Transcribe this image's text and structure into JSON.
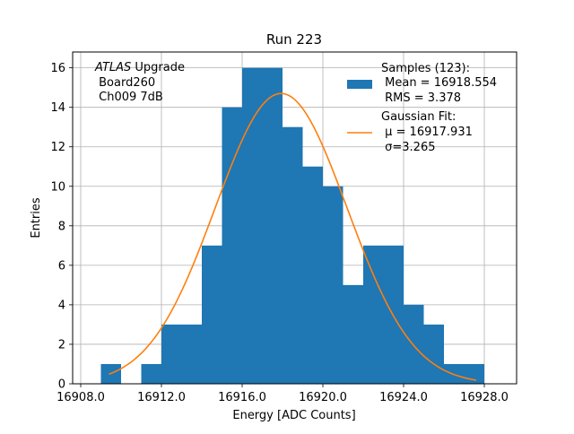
{
  "chart_data": {
    "type": "histogram",
    "title": "Run 223",
    "xlabel": "Energy [ADC Counts]",
    "ylabel": "Entries",
    "xlim": [
      16907.6,
      16929.6
    ],
    "ylim": [
      0,
      16.8
    ],
    "xticks": [
      16908,
      16912,
      16916,
      16920,
      16924,
      16928
    ],
    "xtick_labels": [
      "16908.0",
      "16912.0",
      "16916.0",
      "16920.0",
      "16924.0",
      "16928.0"
    ],
    "yticks": [
      0,
      2,
      4,
      6,
      8,
      10,
      12,
      14,
      16
    ],
    "ytick_labels": [
      "0",
      "2",
      "4",
      "6",
      "8",
      "10",
      "12",
      "14",
      "16"
    ],
    "grid": true,
    "bin_edges": [
      16908,
      16909,
      16910,
      16911,
      16912,
      16913,
      16914,
      16915,
      16916,
      16917,
      16918,
      16919,
      16920,
      16921,
      16922,
      16923,
      16924,
      16925,
      16926,
      16927,
      16928,
      16929
    ],
    "counts": [
      0,
      1,
      0,
      1,
      3,
      3,
      7,
      14,
      16,
      16,
      13,
      11,
      10,
      5,
      7,
      7,
      4,
      3,
      1,
      1,
      0
    ],
    "bar_color": "#1f77b4",
    "fit": {
      "type": "gaussian",
      "mu": 16917.931,
      "sigma": 3.265,
      "amplitude": 14.7,
      "x_range": [
        16909.4,
        16927.6
      ],
      "color": "#ff7f0e"
    },
    "annotation": {
      "lines": [
        "ATLAS Upgrade",
        " Board260",
        " Ch009 7dB"
      ],
      "italic_word": "ATLAS",
      "rest_first_line": " Upgrade"
    },
    "legend": {
      "position": "top-right",
      "entries": [
        {
          "kind": "patch",
          "lines": [
            "Samples (123):",
            " Mean = 16918.554",
            " RMS = 3.378"
          ]
        },
        {
          "kind": "line",
          "lines": [
            "Gaussian Fit:",
            " μ = 16917.931",
            " σ=3.265"
          ]
        }
      ]
    }
  }
}
